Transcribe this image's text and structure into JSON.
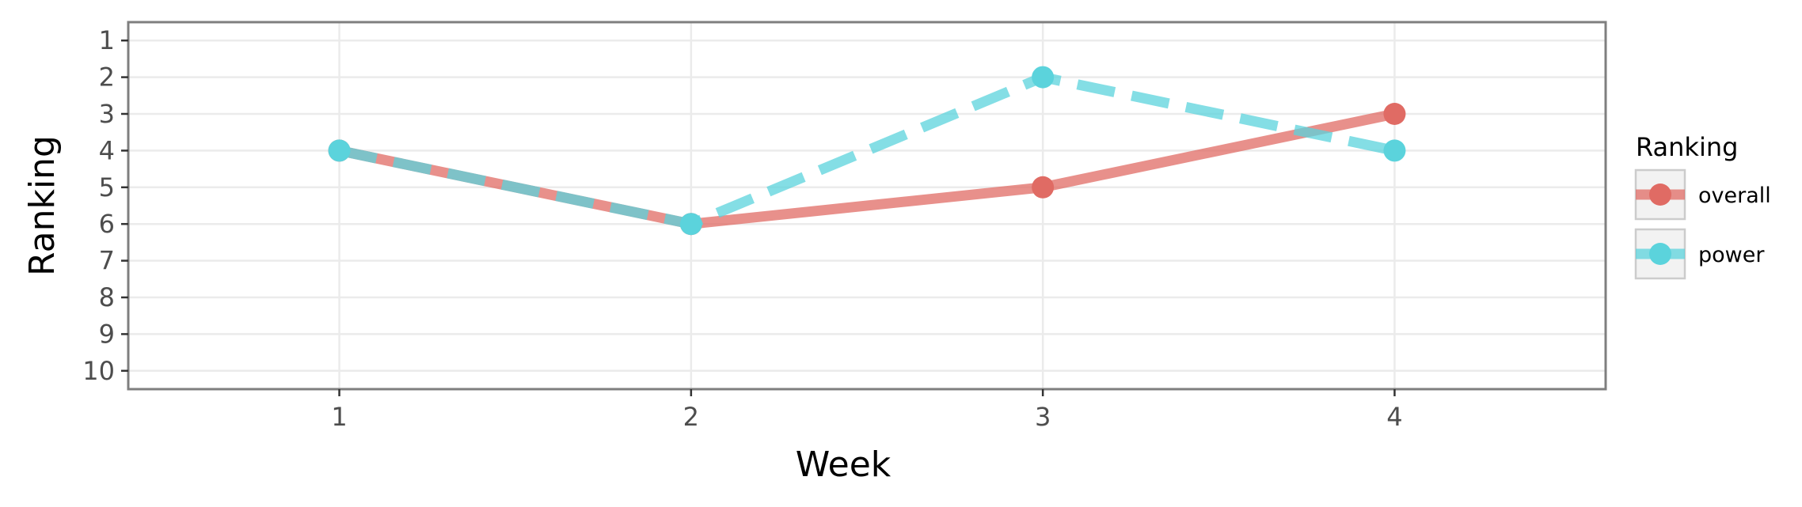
{
  "chart_data": {
    "type": "line",
    "x_categories": [
      "1",
      "2",
      "3",
      "4"
    ],
    "xlabel": "Week",
    "ylabel": "Ranking",
    "y_ticks": [
      "1",
      "2",
      "3",
      "4",
      "5",
      "6",
      "7",
      "8",
      "9",
      "10"
    ],
    "ylim": [
      10.5,
      0.5
    ],
    "y_reversed": true,
    "grid": true,
    "legend": {
      "title": "Ranking",
      "position": "right"
    },
    "series": [
      {
        "name": "overall",
        "values": [
          4,
          6,
          5,
          3
        ],
        "color": "#e06b64",
        "linestyle": "solid"
      },
      {
        "name": "power",
        "values": [
          4,
          6,
          2,
          4
        ],
        "color": "#5bd3dc",
        "linestyle": "dashed"
      }
    ]
  }
}
